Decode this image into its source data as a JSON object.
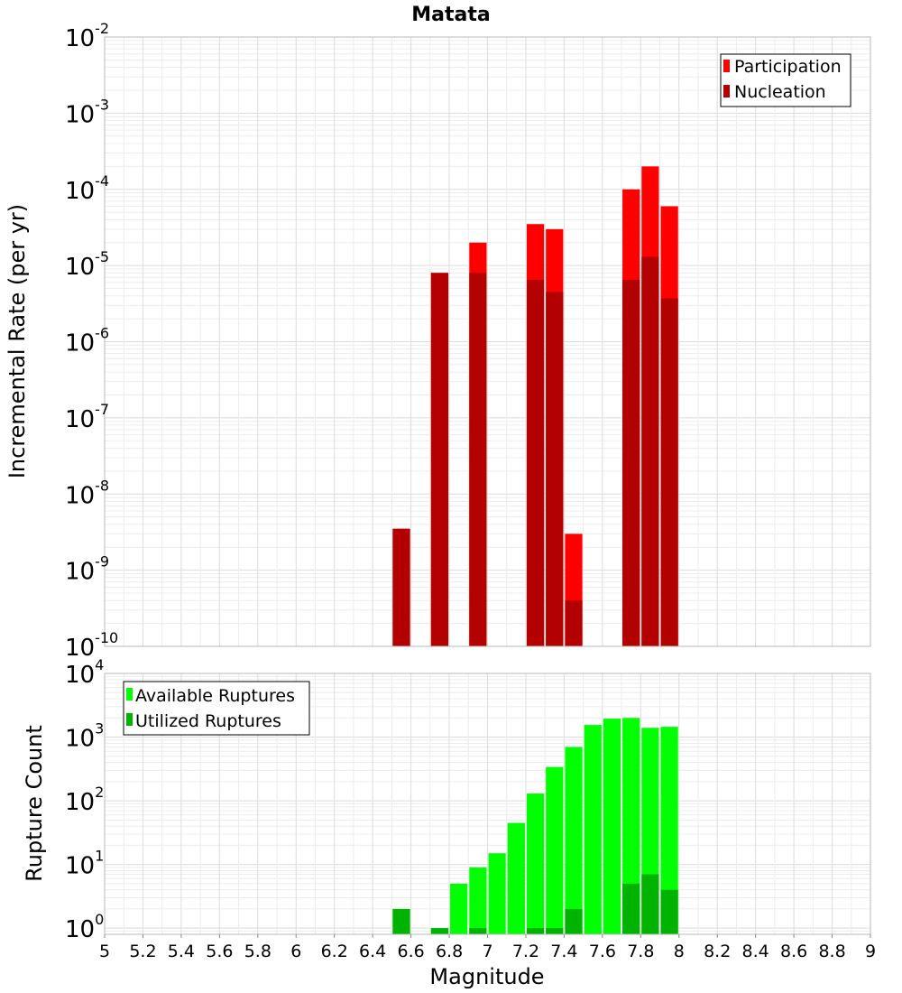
{
  "title": "Matata",
  "chart_data": [
    {
      "type": "bar",
      "title": "Matata",
      "xlabel": "",
      "ylabel": "Incremental Rate (per yr)",
      "yscale": "log",
      "ylim": [
        1e-10,
        0.01
      ],
      "xlim": [
        5,
        9
      ],
      "grid": true,
      "legend_position": "top-right",
      "y_tick_labels": [
        {
          "base": "10",
          "exp": "-10"
        },
        {
          "base": "10",
          "exp": "-9"
        },
        {
          "base": "10",
          "exp": "-8"
        },
        {
          "base": "10",
          "exp": "-7"
        },
        {
          "base": "10",
          "exp": "-6"
        },
        {
          "base": "10",
          "exp": "-5"
        },
        {
          "base": "10",
          "exp": "-4"
        },
        {
          "base": "10",
          "exp": "-3"
        },
        {
          "base": "10",
          "exp": "-2"
        }
      ],
      "series": [
        {
          "name": "Participation",
          "color": "#ff0000",
          "x": [
            6.55,
            6.75,
            6.95,
            7.25,
            7.35,
            7.45,
            7.75,
            7.85,
            7.95
          ],
          "values": [
            3.5e-09,
            8e-06,
            2e-05,
            3.5e-05,
            3e-05,
            3e-09,
            0.0001,
            0.0002,
            6e-05
          ]
        },
        {
          "name": "Nucleation",
          "color": "#b30000",
          "x": [
            6.55,
            6.75,
            6.95,
            7.25,
            7.35,
            7.45,
            7.75,
            7.85,
            7.95
          ],
          "values": [
            3.5e-09,
            8e-06,
            8e-06,
            6.5e-06,
            4.5e-06,
            4e-10,
            6.5e-06,
            1.3e-05,
            3.7e-06
          ]
        }
      ]
    },
    {
      "type": "bar",
      "xlabel": "Magnitude",
      "ylabel": "Rupture Count",
      "yscale": "log",
      "ylim": [
        0.8,
        10000
      ],
      "xlim": [
        5,
        9
      ],
      "grid": true,
      "legend_position": "top-left",
      "x_tick_labels": [
        "5",
        "5.2",
        "5.4",
        "5.6",
        "5.8",
        "6",
        "6.2",
        "6.4",
        "6.6",
        "6.8",
        "7",
        "7.2",
        "7.4",
        "7.6",
        "7.8",
        "8",
        "8.2",
        "8.4",
        "8.6",
        "8.8",
        "9"
      ],
      "y_tick_labels": [
        {
          "base": "10",
          "exp": "0"
        },
        {
          "base": "10",
          "exp": "1"
        },
        {
          "base": "10",
          "exp": "2"
        },
        {
          "base": "10",
          "exp": "3"
        },
        {
          "base": "10",
          "exp": "4"
        }
      ],
      "series": [
        {
          "name": "Available Ruptures",
          "color": "#00ff00",
          "x": [
            6.55,
            6.75,
            6.85,
            6.95,
            7.05,
            7.15,
            7.25,
            7.35,
            7.45,
            7.55,
            7.65,
            7.75,
            7.85,
            7.95
          ],
          "values": [
            2,
            1,
            5,
            9,
            15,
            45,
            130,
            340,
            700,
            1550,
            1950,
            2000,
            1400,
            1450
          ]
        },
        {
          "name": "Utilized Ruptures",
          "color": "#00b300",
          "x": [
            6.55,
            6.75,
            6.95,
            7.25,
            7.35,
            7.45,
            7.75,
            7.85,
            7.95
          ],
          "values": [
            2,
            1,
            1,
            1,
            1,
            2,
            5,
            7,
            4
          ]
        }
      ]
    }
  ]
}
